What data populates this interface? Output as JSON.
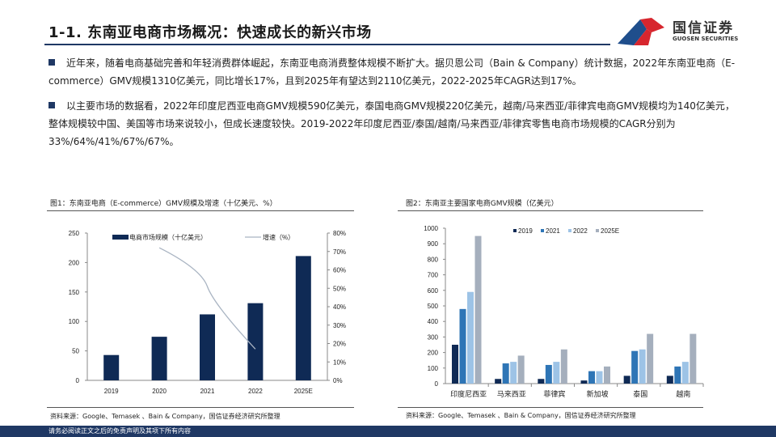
{
  "header": {
    "title": "1-1. 东南亚电商市场概况：快速成长的新兴市场",
    "logo_cn": "国信证券",
    "logo_en": "GUOSEN SECURITIES"
  },
  "paragraphs": [
    "近年来，随着电商基础完善和年轻消费群体崛起，东南亚电商消费整体规模不断扩大。据贝恩公司（Bain & Company）统计数据，2022年东南亚电商（E-commerce）GMV规模1310亿美元，同比增长17%，且到2025年有望达到2110亿美元，2022-2025年CAGR达到17%。",
    "以主要市场的数据看，2022年印度尼西亚电商GMV规模590亿美元，泰国电商GMV规模220亿美元，越南/马来西亚/菲律宾电商GMV规模均为140亿美元，整体规模较中国、美国等市场来说较小，但成长速度较快。2019-2022年印度尼西亚/泰国/越南/马来西亚/菲律宾零售电商市场规模的CAGR分别为33%/64%/41%/67%/67%。"
  ],
  "footer": "请务必阅读正文之后的免责声明及其项下所有内容",
  "colors": {
    "navy": "#0f2a55",
    "c2021": "#2e75b6",
    "c2022": "#9dc3e6",
    "c2025": "#a5afbd",
    "line": "#a9b4c2"
  },
  "chart_data": [
    {
      "type": "bar",
      "title": "图1：东南亚电商（E-commerce）GMV规模及增速（十亿美元、%）",
      "categories": [
        "2019",
        "2020",
        "2021",
        "2022",
        "2025E"
      ],
      "series": [
        {
          "name": "电商市场规模（十亿美元）",
          "type": "bar",
          "values": [
            43,
            74,
            112,
            131,
            211
          ]
        },
        {
          "name": "增速（%）",
          "type": "line",
          "axis": "right",
          "values": [
            null,
            72,
            51,
            17,
            null
          ]
        }
      ],
      "ylim": [
        0,
        250
      ],
      "yticks": [
        "0",
        "50",
        "100",
        "150",
        "200",
        "250"
      ],
      "y2lim": [
        0,
        80
      ],
      "y2ticks": [
        "0%",
        "10%",
        "20%",
        "30%",
        "40%",
        "50%",
        "60%",
        "70%",
        "80%"
      ],
      "legend": "top",
      "source": "资料来源：Google、Temasek 、Bain & Company，国信证券经济研究所整理"
    },
    {
      "type": "bar",
      "title": "图2：东南亚主要国家电商GMV规模（亿美元）",
      "categories": [
        "印度尼西亚",
        "马来西亚",
        "菲律宾",
        "新加坡",
        "泰国",
        "越南"
      ],
      "series": [
        {
          "name": "2019",
          "values": [
            250,
            30,
            30,
            20,
            50,
            50
          ]
        },
        {
          "name": "2021",
          "values": [
            480,
            130,
            120,
            80,
            210,
            110
          ]
        },
        {
          "name": "2022",
          "values": [
            590,
            140,
            140,
            80,
            220,
            140
          ]
        },
        {
          "name": "2025E",
          "values": [
            950,
            180,
            220,
            110,
            320,
            320
          ]
        }
      ],
      "ylim": [
        0,
        1000
      ],
      "yticks": [
        "0",
        "100",
        "200",
        "300",
        "400",
        "500",
        "600",
        "700",
        "800",
        "900",
        "1000"
      ],
      "legend": "top",
      "source": "资料来源：Google、Temasek 、Bain & Company，国信证券经济研究所整理"
    }
  ]
}
